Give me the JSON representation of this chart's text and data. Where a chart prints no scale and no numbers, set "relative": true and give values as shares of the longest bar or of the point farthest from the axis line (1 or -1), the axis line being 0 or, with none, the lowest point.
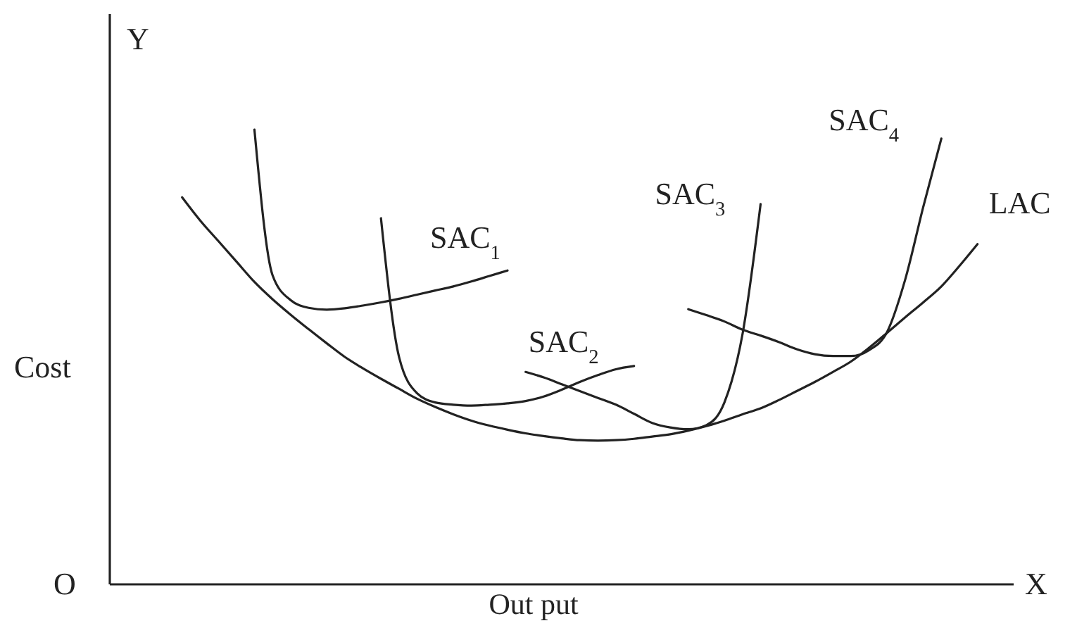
{
  "chart_data": {
    "type": "line",
    "relative": true,
    "xlabel": "Out put",
    "ylabel": "Cost",
    "annotations": [
      "Y",
      "X",
      "O"
    ],
    "line_style": "solid",
    "categories": [
      null,
      null,
      null,
      null,
      null,
      null,
      null,
      null,
      null,
      null,
      null,
      null,
      null,
      null,
      null,
      null,
      null,
      null,
      null,
      null,
      null,
      null,
      null,
      null,
      null,
      null,
      null,
      null,
      null,
      null,
      null,
      null,
      null,
      null,
      null,
      null,
      null,
      null,
      null,
      null,
      null,
      null,
      null,
      null,
      null,
      null,
      null,
      null,
      null,
      null,
      null
    ],
    "series": [
      {
        "name": "LAC",
        "color": "#222222",
        "values": [
          null,
          null,
          null,
          null,
          0.851,
          0.8,
          0.755,
          0.71,
          0.665,
          0.627,
          0.593,
          0.561,
          0.53,
          0.5,
          0.475,
          0.452,
          0.43,
          0.408,
          0.39,
          0.374,
          0.36,
          0.349,
          0.34,
          0.332,
          0.326,
          0.321,
          0.317,
          0.316,
          0.317,
          0.32,
          0.325,
          0.33,
          0.338,
          0.348,
          0.36,
          0.374,
          0.387,
          0.405,
          0.425,
          0.445,
          0.467,
          0.49,
          0.52,
          0.553,
          0.587,
          0.62,
          0.655,
          0.7,
          0.748,
          null,
          null
        ]
      },
      {
        "name": "SAC$_{1}$",
        "color": "#222222",
        "values": [
          null,
          null,
          null,
          null,
          null,
          null,
          null,
          null,
          1.0,
          0.68,
          0.625,
          0.608,
          0.604,
          0.607,
          0.613,
          0.62,
          0.628,
          0.637,
          0.646,
          0.655,
          0.666,
          0.678,
          0.69,
          null,
          null,
          null,
          null,
          null,
          null,
          null,
          null,
          null,
          null,
          null,
          null,
          null,
          null,
          null,
          null,
          null,
          null,
          null,
          null,
          null,
          null,
          null,
          null,
          null,
          null,
          null,
          null
        ]
      },
      {
        "name": "SAC$_{2}$",
        "color": "#222222",
        "values": [
          null,
          null,
          null,
          null,
          null,
          null,
          null,
          null,
          null,
          null,
          null,
          null,
          null,
          null,
          null,
          0.805,
          0.5,
          0.42,
          0.4,
          0.395,
          0.393,
          0.395,
          0.398,
          0.403,
          0.413,
          0.428,
          0.445,
          0.46,
          0.473,
          0.48,
          null,
          null,
          null,
          null,
          null,
          null,
          null,
          null,
          null,
          null,
          null,
          null,
          null,
          null,
          null,
          null,
          null,
          null,
          null,
          null,
          null
        ]
      },
      {
        "name": "SAC$_{3}$",
        "color": "#222222",
        "values": [
          null,
          null,
          null,
          null,
          null,
          null,
          null,
          null,
          null,
          null,
          null,
          null,
          null,
          null,
          null,
          null,
          null,
          null,
          null,
          null,
          null,
          null,
          null,
          0.467,
          0.455,
          0.44,
          0.425,
          0.41,
          0.395,
          0.375,
          0.355,
          0.345,
          0.341,
          0.35,
          0.4,
          0.55,
          0.836,
          null,
          null,
          null,
          null,
          null,
          null,
          null,
          null,
          null,
          null,
          null,
          null,
          null,
          null
        ]
      },
      {
        "name": "SAC$_{4}$",
        "color": "#222222",
        "values": [
          null,
          null,
          null,
          null,
          null,
          null,
          null,
          null,
          null,
          null,
          null,
          null,
          null,
          null,
          null,
          null,
          null,
          null,
          null,
          null,
          null,
          null,
          null,
          null,
          null,
          null,
          null,
          null,
          null,
          null,
          null,
          null,
          0.605,
          0.592,
          0.578,
          0.56,
          0.547,
          0.533,
          0.517,
          0.506,
          0.502,
          0.502,
          0.515,
          0.555,
          0.67,
          0.83,
          0.98,
          null,
          null,
          null,
          null
        ]
      }
    ]
  }
}
